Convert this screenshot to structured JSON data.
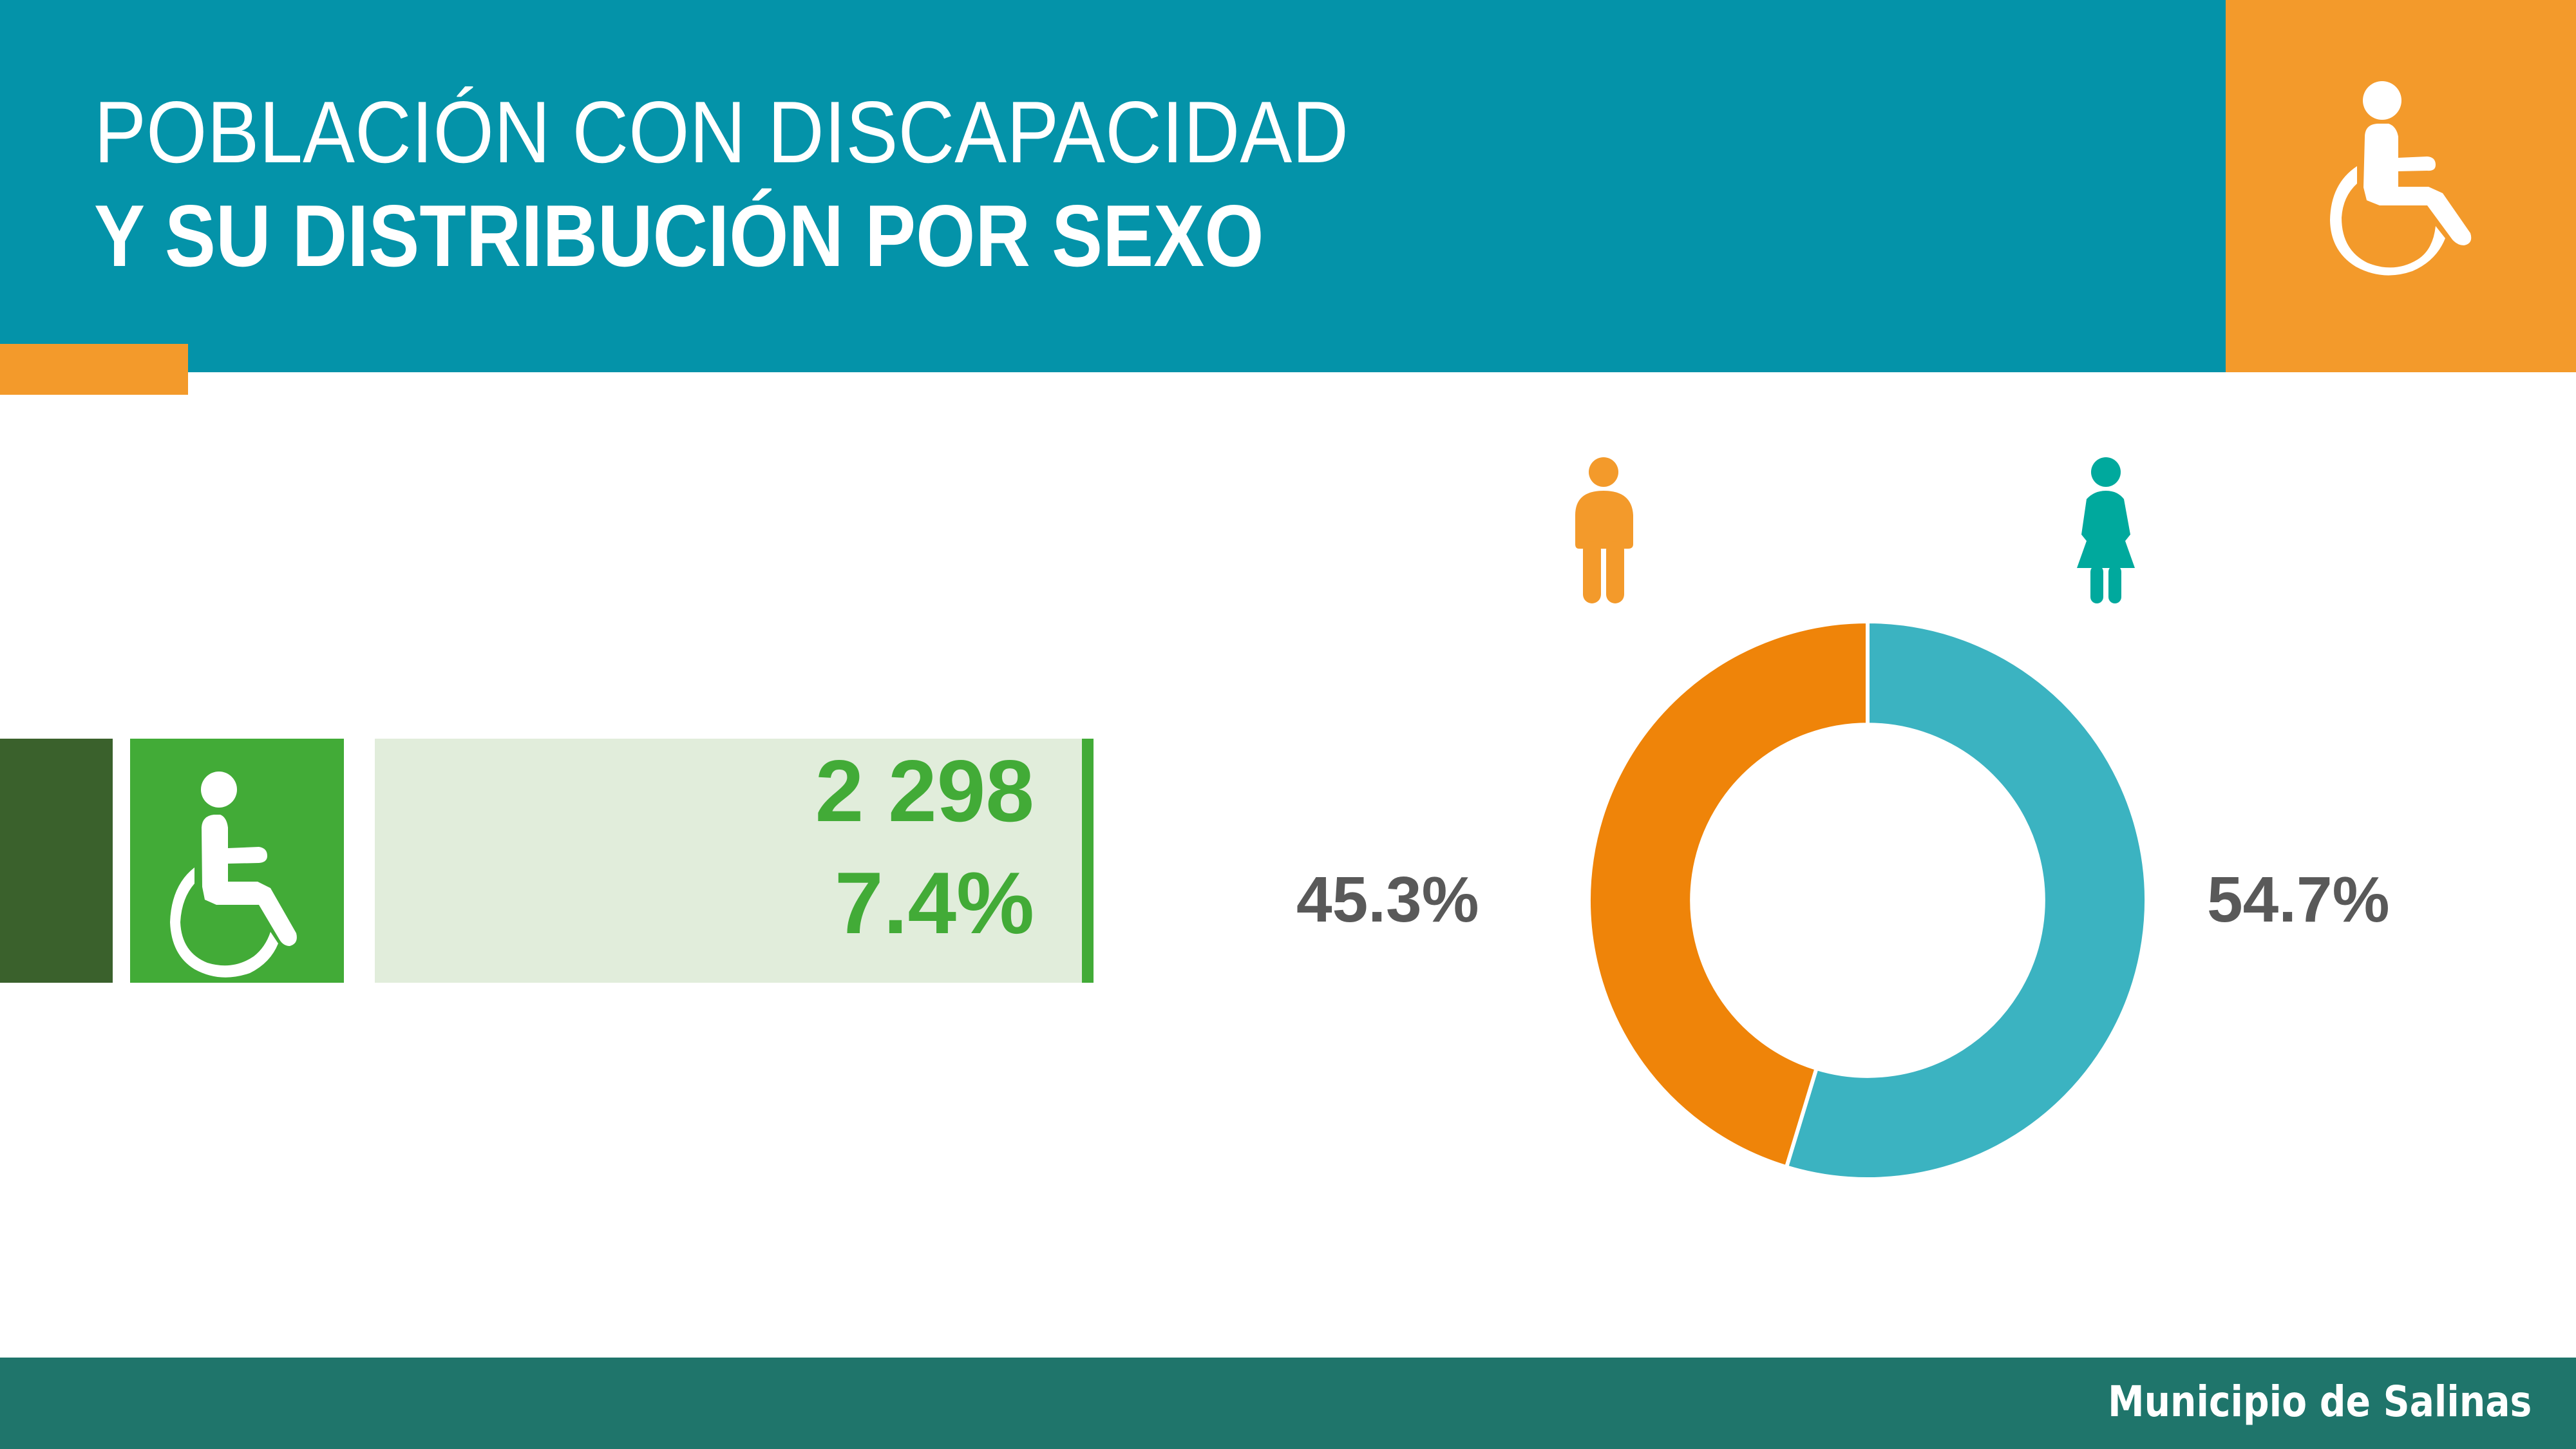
{
  "header": {
    "title_line_1": "POBLACIÓN CON DISCAPACIDAD",
    "title_line_2": "Y SU DISTRIBUCIÓN POR SEXO",
    "icon": "wheelchair-icon",
    "colors": {
      "band": "#0493A9",
      "icon_panel": "#F39A2B",
      "accent": "#F39A2B"
    }
  },
  "stat": {
    "icon": "wheelchair-icon",
    "count": "2 298",
    "percent": "7.4%",
    "colors": {
      "dark": "#3A612C",
      "icon_box": "#42AB37",
      "value_box": "#E1EDDB",
      "text": "#42AB37"
    }
  },
  "gender": {
    "male": {
      "icon": "male-person-icon",
      "label": "45.3%",
      "color": "#F39A2B"
    },
    "female": {
      "icon": "female-person-icon",
      "label": "54.7%",
      "color": "#00A99D"
    }
  },
  "chart_data": {
    "type": "pie",
    "subtype": "donut",
    "title": "Población con discapacidad y su distribución por sexo",
    "categories": [
      "Mujeres",
      "Hombres"
    ],
    "values": [
      54.7,
      45.3
    ],
    "labels": [
      "54.7%",
      "45.3%"
    ],
    "colors": [
      "#3BB3C1",
      "#EF8409"
    ],
    "start_angle_deg": 0,
    "direction": "clockwise",
    "inner_radius_ratio": 0.63,
    "legend": "icons above (male left, female right)",
    "total_population_with_disability": 2298,
    "share_of_population_pct": 7.4
  },
  "footer": {
    "text": "Municipio de Salinas",
    "color": "#1F756B"
  }
}
